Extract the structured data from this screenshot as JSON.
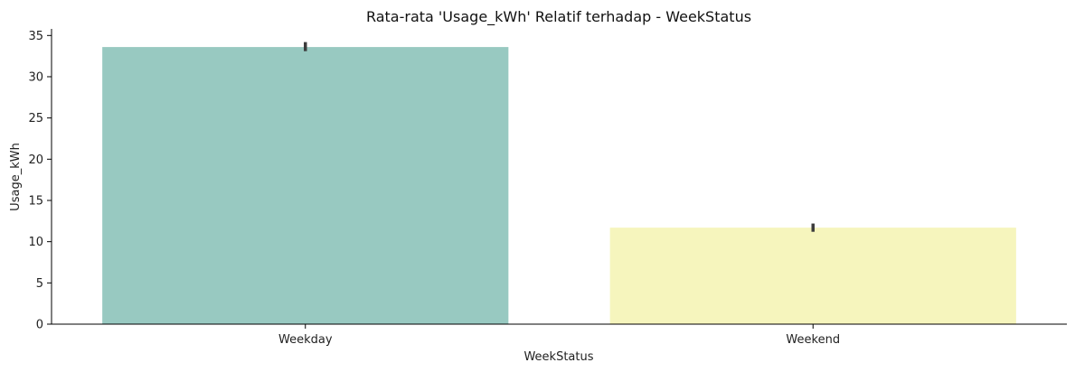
{
  "chart_data": {
    "type": "bar",
    "title": "Rata-rata 'Usage_kWh' Relatif terhadap - WeekStatus",
    "xlabel": "WeekStatus",
    "ylabel": "Usage_kWh",
    "categories": [
      "Weekday",
      "Weekend"
    ],
    "values": [
      33.6,
      11.7
    ],
    "error_bars": [
      {
        "low": 33.1,
        "high": 34.2
      },
      {
        "low": 11.2,
        "high": 12.2
      }
    ],
    "ylim": [
      0,
      35.8
    ],
    "yticks": [
      "0",
      "5",
      "10",
      "15",
      "20",
      "25",
      "30",
      "35"
    ],
    "colors": [
      "#98c9c1",
      "#f6f5bd"
    ],
    "error_color": "#3d3d3d",
    "grid": false,
    "legend": "none"
  }
}
